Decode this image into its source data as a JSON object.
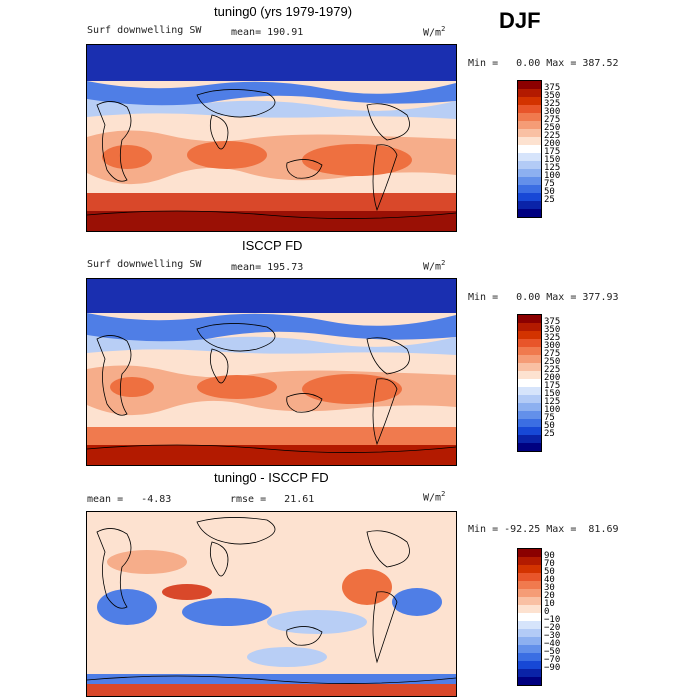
{
  "season_label": "DJF",
  "panels": [
    {
      "title": "tuning0 (yrs 1979-1979)",
      "variable": "Surf downwelling SW",
      "mean_label": "mean= 190.91",
      "units_base": "W/m",
      "units_sup": "2",
      "minmax": "Min =   0.00 Max = 387.52",
      "colorbar_ticks": [
        "375",
        "350",
        "325",
        "300",
        "275",
        "250",
        "225",
        "200",
        "175",
        "150",
        "125",
        "100",
        "75",
        "50",
        "25"
      ],
      "colorbar_colors": [
        "#8b0000",
        "#b31a00",
        "#d33300",
        "#e8552a",
        "#f07a4e",
        "#f59c76",
        "#f9c0a3",
        "#fde2d0",
        "#ffffff",
        "#d6e4fb",
        "#b3cbf6",
        "#8db0f0",
        "#6390ea",
        "#3b6ee3",
        "#1748d6",
        "#0a23a8",
        "#000080"
      ]
    },
    {
      "title": "ISCCP FD",
      "variable": "Surf downwelling SW",
      "mean_label": "mean= 195.73",
      "units_base": "W/m",
      "units_sup": "2",
      "minmax": "Min =   0.00 Max = 377.93",
      "colorbar_ticks": [
        "375",
        "350",
        "325",
        "300",
        "275",
        "250",
        "225",
        "200",
        "175",
        "150",
        "125",
        "100",
        "75",
        "50",
        "25"
      ],
      "colorbar_colors": [
        "#8b0000",
        "#b31a00",
        "#d33300",
        "#e8552a",
        "#f07a4e",
        "#f59c76",
        "#f9c0a3",
        "#fde2d0",
        "#ffffff",
        "#d6e4fb",
        "#b3cbf6",
        "#8db0f0",
        "#6390ea",
        "#3b6ee3",
        "#1748d6",
        "#0a23a8",
        "#000080"
      ]
    },
    {
      "title": "tuning0 - ISCCP FD",
      "mean_label": "mean =   -4.83",
      "rmse_label": "rmse =   21.61",
      "units_base": "W/m",
      "units_sup": "2",
      "minmax": "Min = -92.25 Max =  81.69",
      "colorbar_ticks": [
        "90",
        "70",
        "50",
        "40",
        "30",
        "20",
        "10",
        "0",
        "−10",
        "−20",
        "−30",
        "−40",
        "−50",
        "−70",
        "−90"
      ],
      "colorbar_colors": [
        "#8b0000",
        "#b31a00",
        "#d33300",
        "#e8552a",
        "#f07a4e",
        "#f59c76",
        "#f9c0a3",
        "#fde2d0",
        "#ffffff",
        "#d6e4fb",
        "#b3cbf6",
        "#8db0f0",
        "#6390ea",
        "#3b6ee3",
        "#1748d6",
        "#0a23a8",
        "#000080"
      ]
    }
  ],
  "map_colors": {
    "dark_blue": "#1a2fb0",
    "mid_blue": "#4f7ee6",
    "light_blue": "#b8cef5",
    "pale": "#fde2d0",
    "light_orange": "#f6ad8a",
    "orange": "#ee7040",
    "red_orange": "#d9482a",
    "dark_red": "#9a1005",
    "white": "#ffffff"
  }
}
